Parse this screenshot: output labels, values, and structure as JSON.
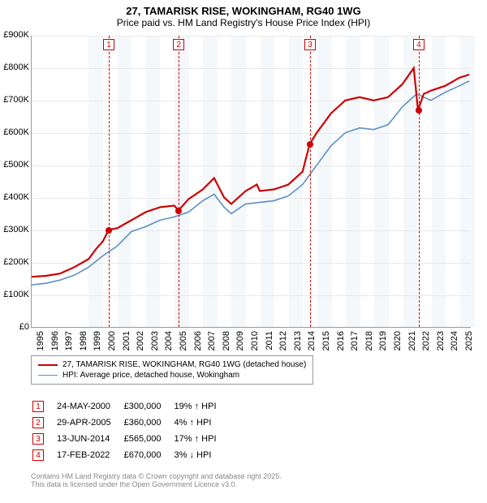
{
  "title": "27, TAMARISK RISE, WOKINGHAM, RG40 1WG",
  "subtitle": "Price paid vs. HM Land Registry's House Price Index (HPI)",
  "chart": {
    "type": "line",
    "x_range": [
      1995,
      2025.8
    ],
    "y_range": [
      0,
      900000
    ],
    "y_ticks": [
      0,
      100000,
      200000,
      300000,
      400000,
      500000,
      600000,
      700000,
      800000,
      900000
    ],
    "y_tick_labels": [
      "£0",
      "£100K",
      "£200K",
      "£300K",
      "£400K",
      "£500K",
      "£600K",
      "£700K",
      "£800K",
      "£900K"
    ],
    "x_ticks": [
      1995,
      1996,
      1997,
      1998,
      1999,
      2000,
      2001,
      2002,
      2003,
      2004,
      2005,
      2006,
      2007,
      2008,
      2009,
      2010,
      2011,
      2012,
      2013,
      2014,
      2015,
      2016,
      2017,
      2018,
      2019,
      2020,
      2021,
      2022,
      2023,
      2024,
      2025
    ],
    "bg_bands_years": [
      1999,
      2001,
      2003,
      2005,
      2007,
      2009,
      2011,
      2013,
      2015,
      2017,
      2019,
      2021,
      2023,
      2025
    ],
    "grid_color": "#e8e8e8",
    "background_color": "#ffffff",
    "plot_bg_alt": "#f4f8fb",
    "axis_fontsize": 11,
    "title_fontsize": 13,
    "series": [
      {
        "name": "27, TAMARISK RISE, WOKINGHAM, RG40 1WG (detached house)",
        "color": "#cc0000",
        "width": 2.2,
        "points": [
          [
            1995,
            155000
          ],
          [
            1996,
            158000
          ],
          [
            1997,
            165000
          ],
          [
            1998,
            185000
          ],
          [
            1999,
            210000
          ],
          [
            1999.5,
            240000
          ],
          [
            2000,
            265000
          ],
          [
            2000.4,
            300000
          ],
          [
            2001,
            305000
          ],
          [
            2002,
            330000
          ],
          [
            2003,
            355000
          ],
          [
            2004,
            370000
          ],
          [
            2005,
            375000
          ],
          [
            2005.3,
            360000
          ],
          [
            2006,
            395000
          ],
          [
            2007,
            425000
          ],
          [
            2007.8,
            460000
          ],
          [
            2008.5,
            400000
          ],
          [
            2009,
            380000
          ],
          [
            2010,
            420000
          ],
          [
            2010.8,
            440000
          ],
          [
            2011,
            420000
          ],
          [
            2012,
            425000
          ],
          [
            2013,
            440000
          ],
          [
            2014,
            480000
          ],
          [
            2014.5,
            565000
          ],
          [
            2015,
            600000
          ],
          [
            2016,
            660000
          ],
          [
            2017,
            700000
          ],
          [
            2018,
            710000
          ],
          [
            2019,
            700000
          ],
          [
            2020,
            710000
          ],
          [
            2021,
            750000
          ],
          [
            2021.8,
            800000
          ],
          [
            2022.1,
            670000
          ],
          [
            2022.5,
            720000
          ],
          [
            2023,
            730000
          ],
          [
            2024,
            745000
          ],
          [
            2025,
            770000
          ],
          [
            2025.7,
            780000
          ]
        ]
      },
      {
        "name": "HPI: Average price, detached house, Wokingham",
        "color": "#5b8fc6",
        "width": 1.6,
        "points": [
          [
            1995,
            130000
          ],
          [
            1996,
            135000
          ],
          [
            1997,
            145000
          ],
          [
            1998,
            160000
          ],
          [
            1999,
            185000
          ],
          [
            2000,
            220000
          ],
          [
            2001,
            250000
          ],
          [
            2002,
            295000
          ],
          [
            2003,
            310000
          ],
          [
            2004,
            330000
          ],
          [
            2005,
            340000
          ],
          [
            2006,
            355000
          ],
          [
            2007,
            390000
          ],
          [
            2007.8,
            410000
          ],
          [
            2008.5,
            370000
          ],
          [
            2009,
            350000
          ],
          [
            2010,
            380000
          ],
          [
            2011,
            385000
          ],
          [
            2012,
            390000
          ],
          [
            2013,
            405000
          ],
          [
            2014,
            440000
          ],
          [
            2015,
            500000
          ],
          [
            2016,
            560000
          ],
          [
            2017,
            600000
          ],
          [
            2018,
            615000
          ],
          [
            2019,
            610000
          ],
          [
            2020,
            625000
          ],
          [
            2021,
            680000
          ],
          [
            2022,
            720000
          ],
          [
            2023,
            700000
          ],
          [
            2024,
            725000
          ],
          [
            2025,
            745000
          ],
          [
            2025.7,
            760000
          ]
        ]
      }
    ],
    "markers": [
      {
        "n": "1",
        "year": 2000.4,
        "value": 300000
      },
      {
        "n": "2",
        "year": 2005.3,
        "value": 360000
      },
      {
        "n": "3",
        "year": 2014.5,
        "value": 565000
      },
      {
        "n": "4",
        "year": 2022.1,
        "value": 670000
      }
    ]
  },
  "legend": {
    "items": [
      {
        "color": "#cc0000",
        "width": 2.2,
        "label": "27, TAMARISK RISE, WOKINGHAM, RG40 1WG (detached house)"
      },
      {
        "color": "#5b8fc6",
        "width": 1.6,
        "label": "HPI: Average price, detached house, Wokingham"
      }
    ]
  },
  "sales": [
    {
      "n": "1",
      "date": "24-MAY-2000",
      "price": "£300,000",
      "delta": "19% ↑ HPI"
    },
    {
      "n": "2",
      "date": "29-APR-2005",
      "price": "£360,000",
      "delta": "4% ↑ HPI"
    },
    {
      "n": "3",
      "date": "13-JUN-2014",
      "price": "£565,000",
      "delta": "17% ↑ HPI"
    },
    {
      "n": "4",
      "date": "17-FEB-2022",
      "price": "£670,000",
      "delta": "3% ↓ HPI"
    }
  ],
  "footer": [
    "Contains HM Land Registry data © Crown copyright and database right 2025.",
    "This data is licensed under the Open Government Licence v3.0."
  ]
}
